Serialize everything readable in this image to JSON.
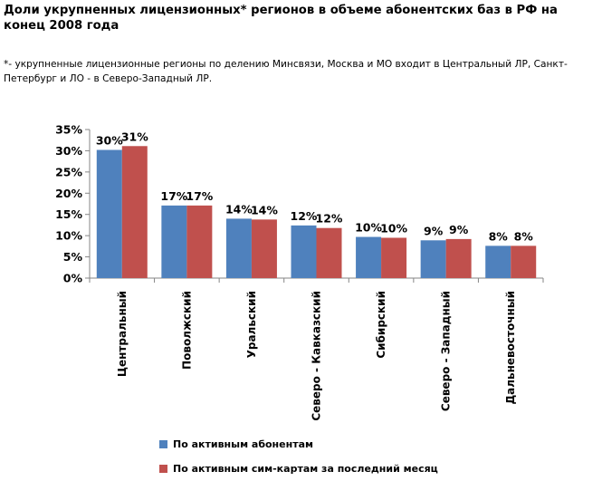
{
  "title": "Доли укрупненных лицензионных* регионов в объеме абонентских баз в РФ на конец 2008 года",
  "note": "*- укрупненные лицензионные регионы по делению Минсвязи, Москва и МО входит в Центральный ЛР, Санкт-Петербург и ЛО - в Северо-Западный ЛР.",
  "colors": {
    "series1": "#4f81bd",
    "series2": "#c0504d"
  },
  "chart_data": {
    "type": "bar",
    "categories": [
      "Центральный",
      "Поволжский",
      "Уральский",
      "Северо - Кавказский",
      "Сибирский",
      "Северо - Западный",
      "Дальневосточный"
    ],
    "series": [
      {
        "name": "По активным абонентам",
        "values": [
          30.2,
          17.1,
          14.0,
          12.4,
          9.7,
          8.9,
          7.6
        ],
        "labels": [
          "30%",
          "17%",
          "14%",
          "12%",
          "10%",
          "9%",
          "8%"
        ]
      },
      {
        "name": "По активным сим-картам за последний месяц",
        "values": [
          31.1,
          17.1,
          13.8,
          11.8,
          9.5,
          9.2,
          7.6
        ],
        "labels": [
          "31%",
          "17%",
          "14%",
          "12%",
          "10%",
          "9%",
          "8%"
        ]
      }
    ],
    "ylim": [
      0,
      35
    ],
    "yticks": [
      "0%",
      "5%",
      "10%",
      "15%",
      "20%",
      "25%",
      "30%",
      "35%"
    ],
    "ytick_values": [
      0,
      5,
      10,
      15,
      20,
      25,
      30,
      35
    ],
    "legend_position": "bottom"
  }
}
